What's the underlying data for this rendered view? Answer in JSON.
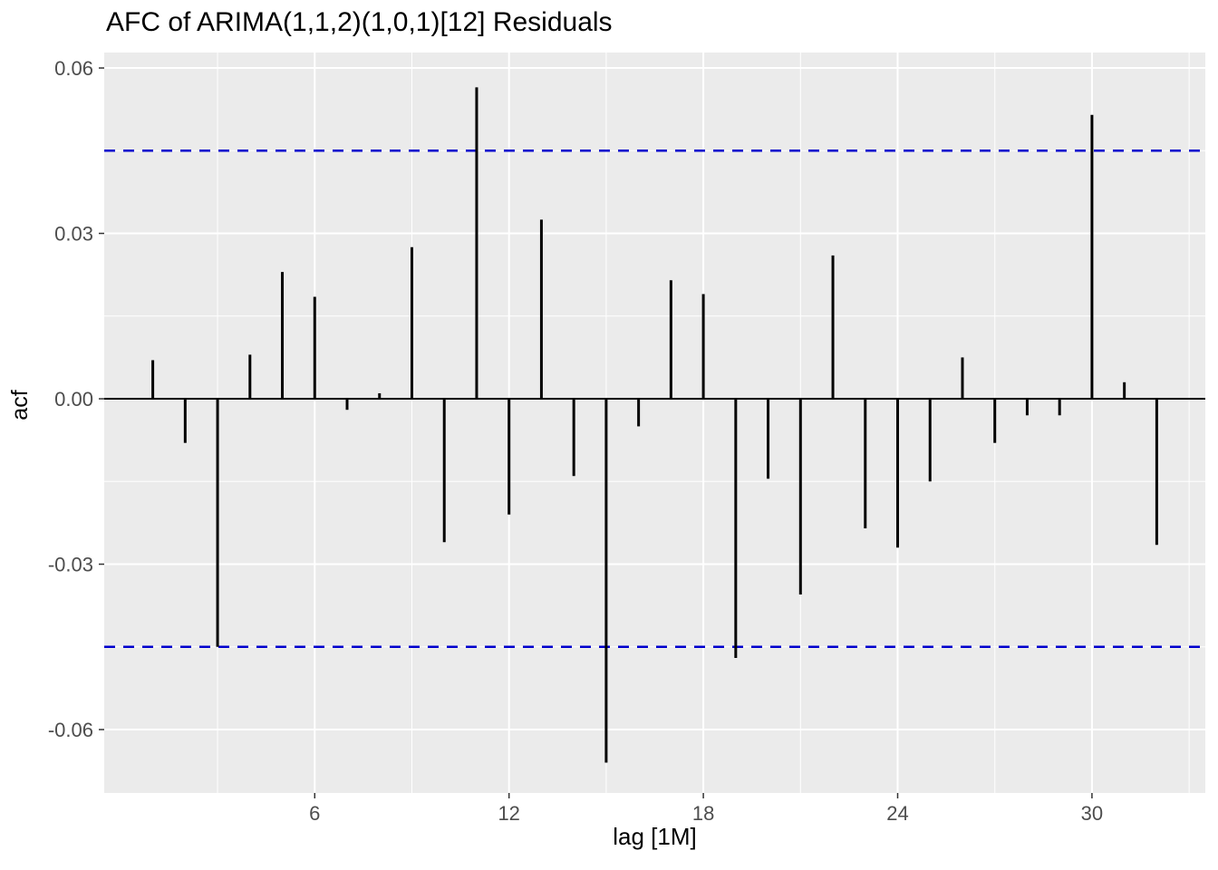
{
  "title": "AFC of ARIMA(1,1,2)(1,0,1)[12] Residuals",
  "chart_data": {
    "type": "bar",
    "subtype": "acf-lollipop",
    "title": "AFC of ARIMA(1,1,2)(1,0,1)[12] Residuals",
    "xlabel": "lag [1M]",
    "ylabel": "acf",
    "x": [
      1,
      2,
      3,
      4,
      5,
      6,
      7,
      8,
      9,
      10,
      11,
      12,
      13,
      14,
      15,
      16,
      17,
      18,
      19,
      20,
      21,
      22,
      23,
      24,
      25,
      26,
      27,
      28,
      29,
      30,
      31,
      32
    ],
    "values": [
      0.007,
      -0.008,
      -0.045,
      0.008,
      0.023,
      0.0185,
      -0.002,
      0.001,
      0.0275,
      -0.026,
      0.0565,
      -0.021,
      0.0325,
      -0.014,
      -0.066,
      -0.005,
      0.0215,
      0.019,
      -0.047,
      -0.0145,
      -0.0355,
      0.026,
      -0.0235,
      -0.027,
      -0.015,
      0.0075,
      -0.008,
      -0.003,
      -0.003,
      0.0515,
      0.003,
      -0.0265
    ],
    "confidence_bounds": {
      "upper": 0.045,
      "lower": -0.045
    },
    "x_ticks": [
      6,
      12,
      18,
      24,
      30
    ],
    "x_tick_labels": [
      "6",
      "12",
      "18",
      "24",
      "30"
    ],
    "y_ticks": [
      -0.06,
      -0.03,
      0,
      0.03,
      0.06
    ],
    "y_tick_labels": [
      "-0.06",
      "-0.03",
      "0.00",
      "0.03",
      "0.06"
    ],
    "x_minor": [
      3,
      9,
      15,
      21,
      27,
      33
    ],
    "y_minor": [
      -0.045,
      -0.015,
      0.015,
      0.045
    ],
    "xlim": [
      -0.5,
      33.5
    ],
    "ylim": [
      -0.0715,
      0.0628
    ],
    "grid": true,
    "legend": "none",
    "colors": {
      "bar": "#000000",
      "zero_line": "#000000",
      "confidence": "#0000CD",
      "panel_bg": "#EBEBEB",
      "grid": "#FFFFFF",
      "tick_label": "#4D4D4D",
      "tick_mark": "#333333",
      "title": "#000000"
    }
  }
}
